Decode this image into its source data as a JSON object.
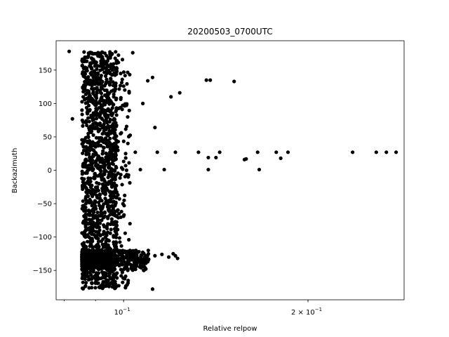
{
  "chart_data": {
    "type": "scatter",
    "title": "20200503_0700UTC",
    "xlabel": "Relative relpow",
    "ylabel": "Backazimuth",
    "xscale": "log",
    "xlim": [
      0.0776,
      0.287
    ],
    "ylim": [
      -194,
      194
    ],
    "marker_color": "#000000",
    "grid": false,
    "legend": "none",
    "x_major_ticks": [
      {
        "value": 0.1,
        "label": "10"
      },
      {
        "value": 0.2,
        "label": "2 × 10"
      }
    ],
    "x_major_tick_exponent": "−1",
    "y_ticks": [
      {
        "value": 150,
        "label": "150"
      },
      {
        "value": 100,
        "label": "100"
      },
      {
        "value": 50,
        "label": "50"
      },
      {
        "value": 0,
        "label": "0"
      },
      {
        "value": -50,
        "label": "−50"
      },
      {
        "value": -100,
        "label": "−100"
      },
      {
        "value": -150,
        "label": "−150"
      }
    ],
    "clusters": [
      {
        "x_range": [
          0.0855,
          0.0975
        ],
        "y_range": [
          -178,
          178
        ],
        "count": 1400
      },
      {
        "x_range": [
          0.0855,
          0.11
        ],
        "y_range": [
          -150,
          -120
        ],
        "count": 500
      },
      {
        "x_range": [
          0.097,
          0.1025
        ],
        "y_range": [
          -178,
          178
        ],
        "count": 120
      }
    ],
    "points": [
      {
        "x": 0.0815,
        "y": 178
      },
      {
        "x": 0.0825,
        "y": 77
      },
      {
        "x": 0.0995,
        "y": 136
      },
      {
        "x": 0.1035,
        "y": 176
      },
      {
        "x": 0.1095,
        "y": 134
      },
      {
        "x": 0.1115,
        "y": 139
      },
      {
        "x": 0.1195,
        "y": 110
      },
      {
        "x": 0.1235,
        "y": 116
      },
      {
        "x": 0.1365,
        "y": 135
      },
      {
        "x": 0.1385,
        "y": 135
      },
      {
        "x": 0.1515,
        "y": 133
      },
      {
        "x": 0.1075,
        "y": 100
      },
      {
        "x": 0.1125,
        "y": 64
      },
      {
        "x": 0.1045,
        "y": 27
      },
      {
        "x": 0.1135,
        "y": 27
      },
      {
        "x": 0.1215,
        "y": 27
      },
      {
        "x": 0.1325,
        "y": 27
      },
      {
        "x": 0.1375,
        "y": 19
      },
      {
        "x": 0.1415,
        "y": 19
      },
      {
        "x": 0.1435,
        "y": 27
      },
      {
        "x": 0.1575,
        "y": 16
      },
      {
        "x": 0.1585,
        "y": 17
      },
      {
        "x": 0.1655,
        "y": 27
      },
      {
        "x": 0.1775,
        "y": 27
      },
      {
        "x": 0.1805,
        "y": 18
      },
      {
        "x": 0.1855,
        "y": 27
      },
      {
        "x": 0.2365,
        "y": 27
      },
      {
        "x": 0.2585,
        "y": 27
      },
      {
        "x": 0.2685,
        "y": 27
      },
      {
        "x": 0.2785,
        "y": 27
      },
      {
        "x": 0.1065,
        "y": 1
      },
      {
        "x": 0.1165,
        "y": 1
      },
      {
        "x": 0.1375,
        "y": 1
      },
      {
        "x": 0.1665,
        "y": 1
      },
      {
        "x": 0.1115,
        "y": -178
      },
      {
        "x": 0.1095,
        "y": -137
      },
      {
        "x": 0.1125,
        "y": -128
      },
      {
        "x": 0.1155,
        "y": -126
      },
      {
        "x": 0.1185,
        "y": -130
      },
      {
        "x": 0.1215,
        "y": -128
      },
      {
        "x": 0.1225,
        "y": -132
      },
      {
        "x": 0.1205,
        "y": -125
      }
    ]
  }
}
